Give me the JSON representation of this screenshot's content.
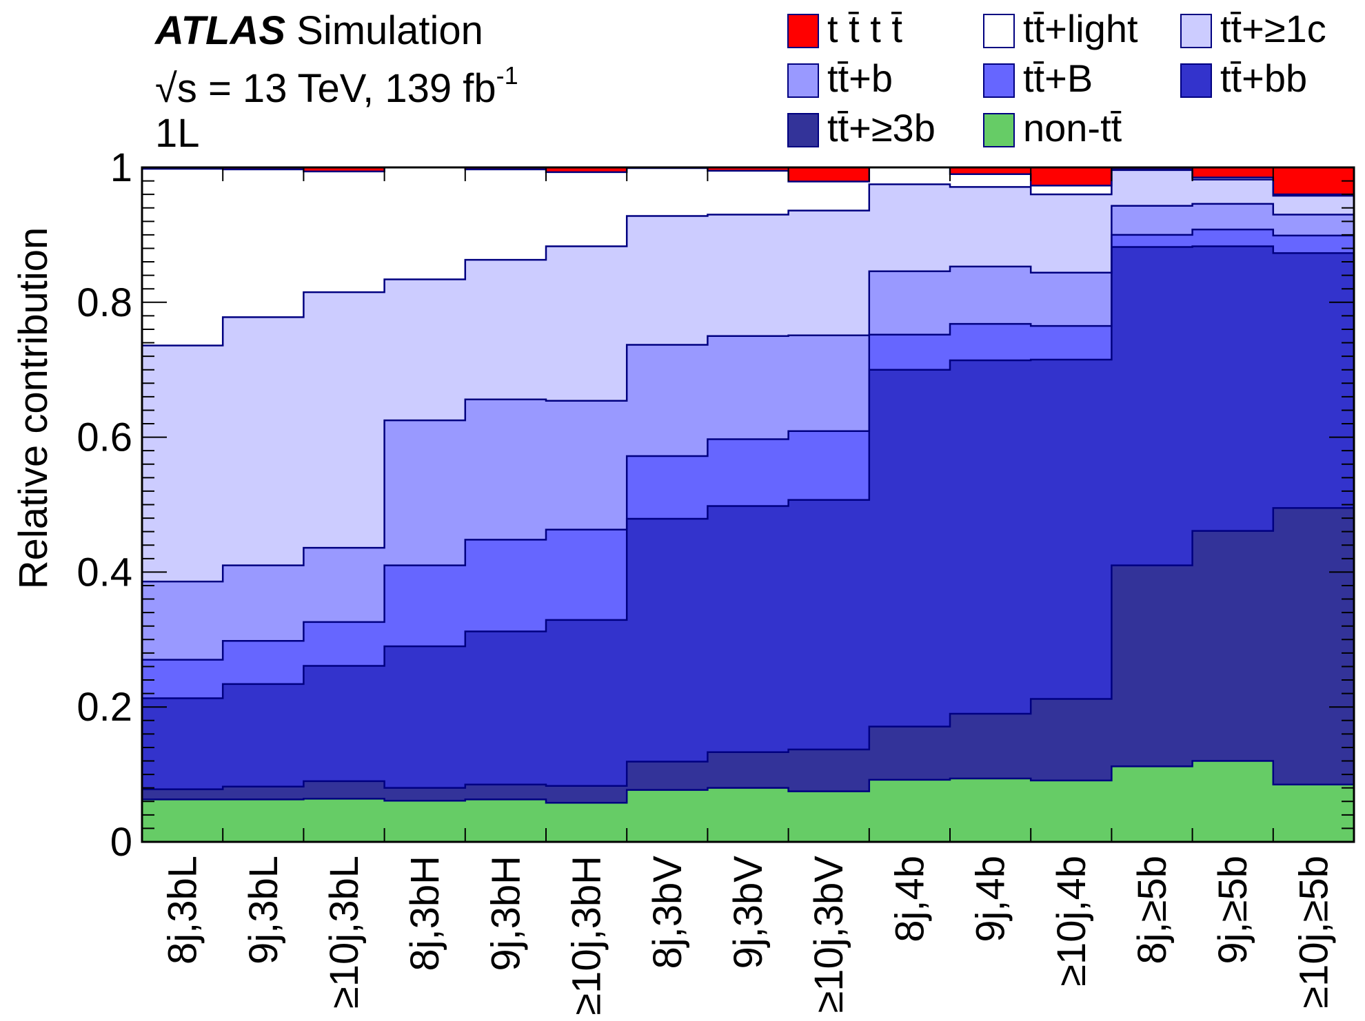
{
  "header": {
    "experiment": "ATLAS",
    "status": "Simulation",
    "energy": "√s = 13 TeV, 139 fb",
    "lumi_exponent": "-1",
    "channel": "1L"
  },
  "legend": {
    "items": [
      {
        "prefix": "",
        "label": "t t̄ t t̄",
        "html": "tt̄tt̄",
        "color": "#ff0000"
      },
      {
        "prefix": "",
        "label": "tt̄+light",
        "color": "#ffffff"
      },
      {
        "prefix": "",
        "label": "tt̄+≥1c",
        "color": "#ccccff"
      },
      {
        "prefix": "",
        "label": "tt̄+b",
        "color": "#9999ff"
      },
      {
        "prefix": "",
        "label": "tt̄+B",
        "color": "#6666ff"
      },
      {
        "prefix": "",
        "label": "tt̄+bb",
        "color": "#3333cc"
      },
      {
        "prefix": "",
        "label": "tt̄+≥3b",
        "color": "#333399"
      },
      {
        "prefix": "non-",
        "label": "non-tt̄",
        "color": "#66cc66"
      }
    ]
  },
  "chart_data": {
    "type": "bar",
    "stacked": true,
    "ylabel": "Relative contribution",
    "ylim": [
      0,
      1
    ],
    "yticks": [
      0,
      0.2,
      0.4,
      0.6,
      0.8,
      1
    ],
    "ytick_labels": [
      "0",
      "0.2",
      "0.4",
      "0.6",
      "0.8",
      "1"
    ],
    "grid": false,
    "legend_position": "top-right",
    "categories": [
      "8j,3bL",
      "9j,3bL",
      "≥10j,3bL",
      "8j,3bH",
      "9j,3bH",
      "≥10j,3bH",
      "8j,3bV",
      "9j,3bV",
      "≥10j,3bV",
      "8j,4b",
      "9j,4b",
      "≥10j,4b",
      "8j,≥5b",
      "9j,≥5b",
      "≥10j,≥5b"
    ],
    "cumulative_boundaries": {
      "non-tt̄": [
        0.063,
        0.063,
        0.064,
        0.061,
        0.063,
        0.058,
        0.077,
        0.08,
        0.075,
        0.092,
        0.094,
        0.091,
        0.112,
        0.12,
        0.085
      ],
      "tt̄+≥3b": [
        0.078,
        0.082,
        0.09,
        0.08,
        0.085,
        0.083,
        0.119,
        0.133,
        0.137,
        0.171,
        0.19,
        0.212,
        0.41,
        0.461,
        0.495
      ],
      "tt̄+bb": [
        0.213,
        0.234,
        0.261,
        0.29,
        0.312,
        0.329,
        0.479,
        0.498,
        0.507,
        0.7,
        0.714,
        0.715,
        0.882,
        0.883,
        0.873
      ],
      "tt̄+B": [
        0.27,
        0.298,
        0.326,
        0.41,
        0.448,
        0.463,
        0.572,
        0.597,
        0.609,
        0.752,
        0.768,
        0.765,
        0.9,
        0.908,
        0.899
      ],
      "tt̄+b": [
        0.386,
        0.41,
        0.436,
        0.625,
        0.656,
        0.654,
        0.737,
        0.75,
        0.751,
        0.846,
        0.853,
        0.844,
        0.943,
        0.946,
        0.93
      ],
      "tt̄+≥1c": [
        0.736,
        0.778,
        0.815,
        0.834,
        0.863,
        0.883,
        0.928,
        0.93,
        0.936,
        0.975,
        0.971,
        0.96,
        0.996,
        0.982,
        0.958
      ],
      "tt̄+light": [
        0.998,
        0.997,
        0.994,
        1.0,
        0.997,
        0.993,
        0.999,
        0.995,
        0.979,
        1.0,
        0.99,
        0.973,
        0.997,
        0.985,
        0.96
      ],
      "tt̄tt̄": [
        1.0,
        1.0,
        1.0,
        1.0,
        1.0,
        1.0,
        1.0,
        1.0,
        1.0,
        1.0,
        1.0,
        1.0,
        1.0,
        1.0,
        1.0
      ]
    },
    "series_order_bottom_to_top": [
      "non-tt̄",
      "tt̄+≥3b",
      "tt̄+bb",
      "tt̄+B",
      "tt̄+b",
      "tt̄+≥1c",
      "tt̄+light",
      "tt̄tt̄"
    ]
  }
}
